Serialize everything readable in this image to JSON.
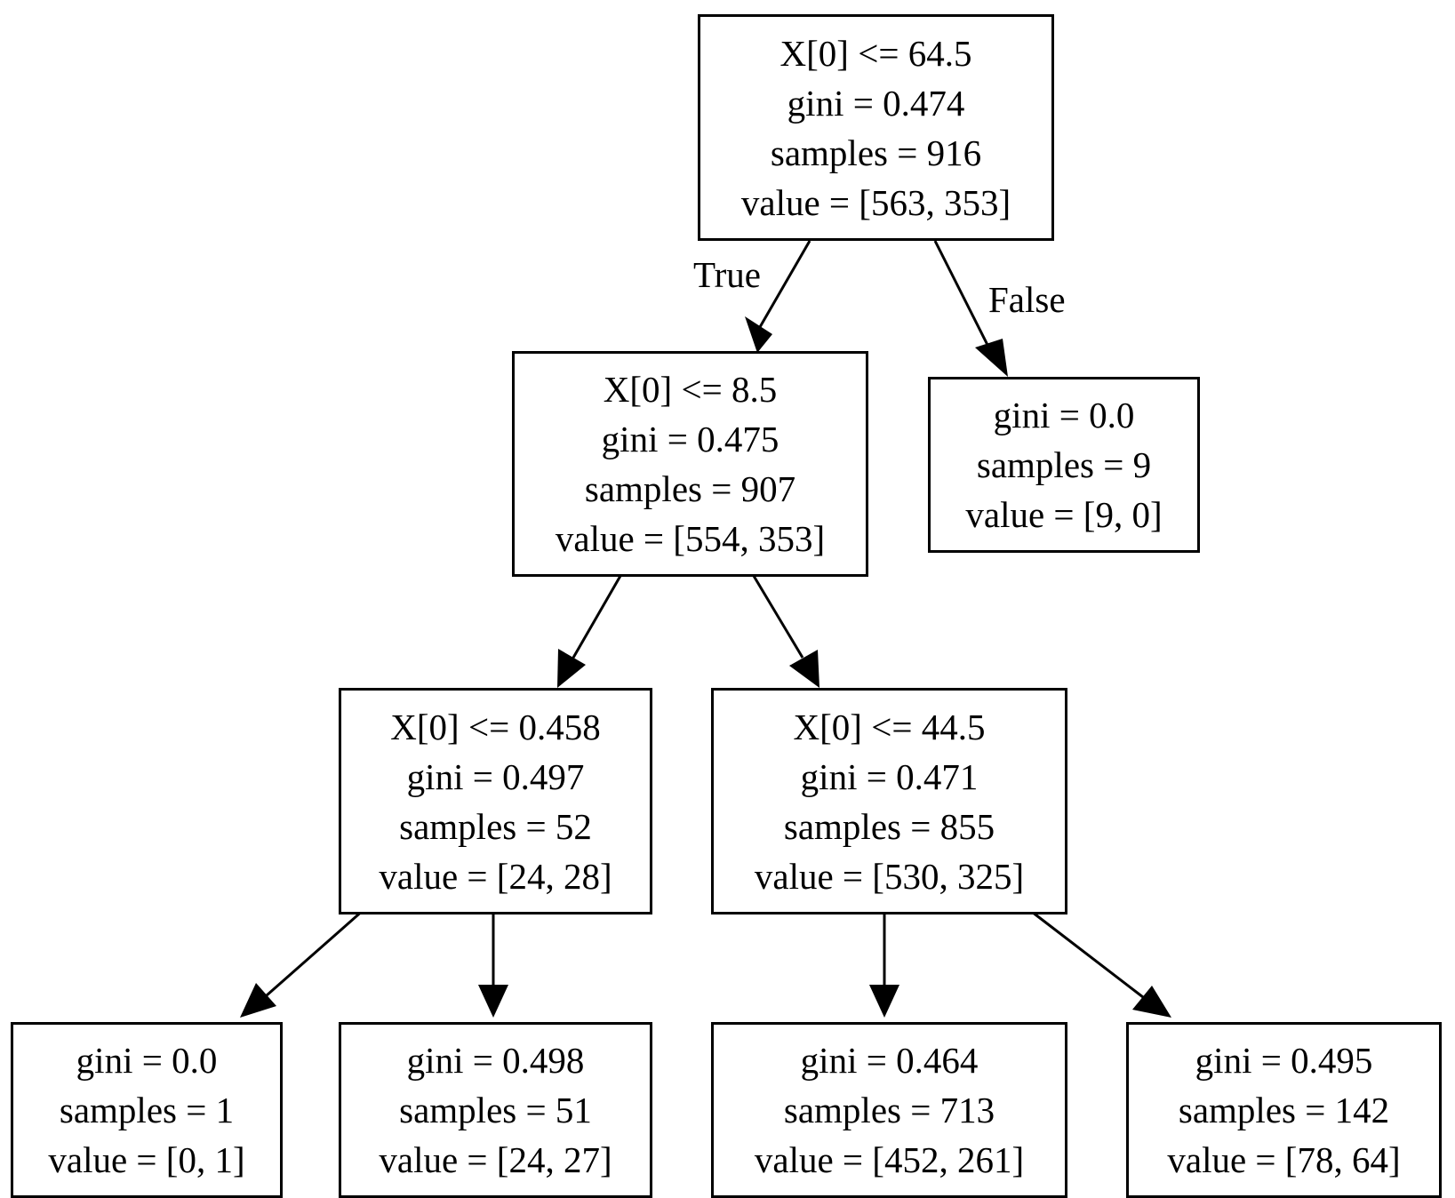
{
  "nodes": {
    "n0": {
      "lines": [
        "X[0] <= 64.5",
        "gini = 0.474",
        "samples = 916",
        "value = [563, 353]"
      ]
    },
    "n1": {
      "lines": [
        "X[0] <= 8.5",
        "gini = 0.475",
        "samples = 907",
        "value = [554, 353]"
      ]
    },
    "n2": {
      "lines": [
        "gini = 0.0",
        "samples = 9",
        "value = [9, 0]"
      ]
    },
    "n3": {
      "lines": [
        "X[0] <= 0.458",
        "gini = 0.497",
        "samples = 52",
        "value = [24, 28]"
      ]
    },
    "n4": {
      "lines": [
        "X[0] <= 44.5",
        "gini = 0.471",
        "samples = 855",
        "value = [530, 325]"
      ]
    },
    "n5": {
      "lines": [
        "gini = 0.0",
        "samples = 1",
        "value = [0, 1]"
      ]
    },
    "n6": {
      "lines": [
        "gini = 0.498",
        "samples = 51",
        "value = [24, 27]"
      ]
    },
    "n7": {
      "lines": [
        "gini = 0.464",
        "samples = 713",
        "value = [452, 261]"
      ]
    },
    "n8": {
      "lines": [
        "gini = 0.495",
        "samples = 142",
        "value = [78, 64]"
      ]
    }
  },
  "edges": [
    {
      "from": "n0",
      "to": "n1",
      "label": "True"
    },
    {
      "from": "n0",
      "to": "n2",
      "label": "False"
    },
    {
      "from": "n1",
      "to": "n3"
    },
    {
      "from": "n1",
      "to": "n4"
    },
    {
      "from": "n3",
      "to": "n5"
    },
    {
      "from": "n3",
      "to": "n6"
    },
    {
      "from": "n4",
      "to": "n7"
    },
    {
      "from": "n4",
      "to": "n8"
    }
  ]
}
